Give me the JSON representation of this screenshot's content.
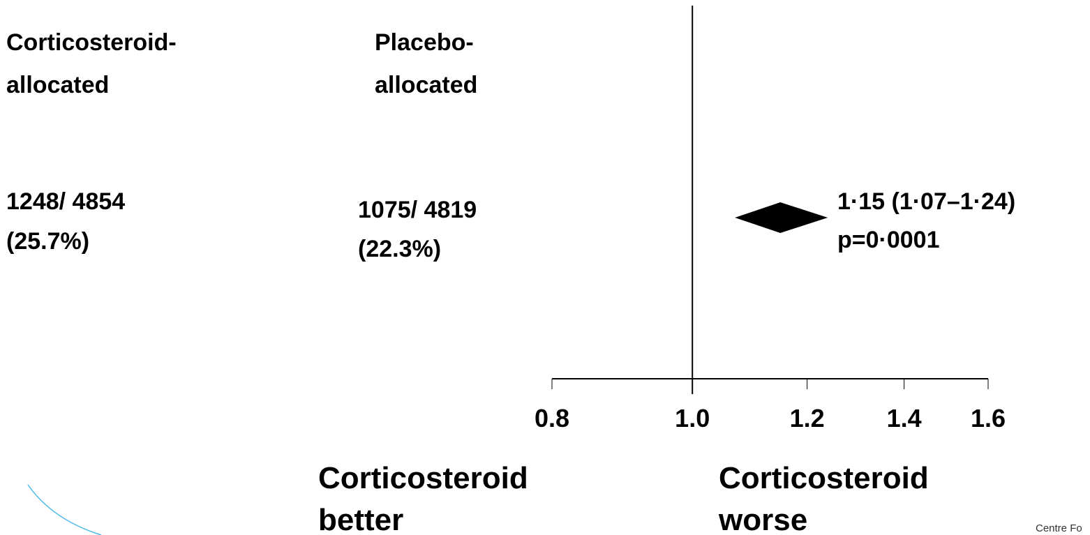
{
  "chart_data": {
    "type": "forest",
    "columns": [
      {
        "header": [
          "Corticosteroid-",
          "allocated"
        ],
        "result": [
          "1248/ 4854",
          "(25.7%)"
        ]
      },
      {
        "header": [
          "Placebo-",
          "allocated"
        ],
        "result": [
          "1075/ 4819",
          "(22.3%)"
        ]
      }
    ],
    "estimate": 1.15,
    "ci": [
      1.07,
      1.24
    ],
    "value_label": "1·15 (1·07–1·24)",
    "p_value": "p=0·0001",
    "reference": 1,
    "xlim": [
      0.8,
      1.6
    ],
    "xticks": [
      0.8,
      {
        "value": 1,
        "label": "1.0"
      },
      1.2,
      1.4,
      1.6
    ],
    "log_scale": true,
    "color": "#000000",
    "xlabel_left": [
      "Corticosteroid",
      "better"
    ],
    "xlabel_right": [
      "Corticosteroid",
      "worse"
    ],
    "footer": "Centre Fo"
  }
}
